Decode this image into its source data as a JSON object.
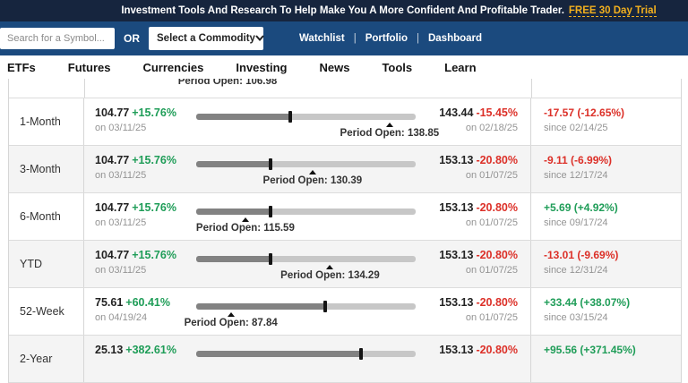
{
  "banner": {
    "text": "Investment Tools And Research To Help Make You A More Confident And Profitable Trader.",
    "link_label": "FREE 30 Day Trial"
  },
  "topbar": {
    "search_placeholder": "Search for a Symbol...",
    "or_label": "OR",
    "commodity_select_label": "Select a Commodity",
    "chevron_icon": "chevron-down",
    "separator": "|",
    "links": [
      "Watchlist",
      "Portfolio",
      "Dashboard"
    ]
  },
  "nav": {
    "items": [
      "ETFs",
      "Futures",
      "Currencies",
      "Investing",
      "News",
      "Tools",
      "Learn"
    ]
  },
  "performance": {
    "partial_row_open_label": "Period Open: 106.98",
    "rows": [
      {
        "period": "1-Month",
        "low": {
          "value": "104.77",
          "pct": "+15.76%",
          "dir": "up",
          "date": "on 03/11/25"
        },
        "high": {
          "value": "143.44",
          "pct": "-15.45%",
          "dir": "down",
          "date": "on 02/18/25"
        },
        "slider": {
          "marker_pct": 42.7,
          "open_pct": 88.1,
          "open_label": "Period Open: 138.85"
        },
        "change": {
          "text": "-17.57 (-12.65%)",
          "dir": "down",
          "date": "since 02/14/25"
        }
      },
      {
        "period": "3-Month",
        "low": {
          "value": "104.77",
          "pct": "+15.76%",
          "dir": "up",
          "date": "on 03/11/25"
        },
        "high": {
          "value": "153.13",
          "pct": "-20.80%",
          "dir": "down",
          "date": "on 01/07/25"
        },
        "slider": {
          "marker_pct": 34.0,
          "open_pct": 53.0,
          "open_label": "Period Open: 130.39"
        },
        "change": {
          "text": "-9.11 (-6.99%)",
          "dir": "down",
          "date": "since 12/17/24"
        }
      },
      {
        "period": "6-Month",
        "low": {
          "value": "104.77",
          "pct": "+15.76%",
          "dir": "up",
          "date": "on 03/11/25"
        },
        "high": {
          "value": "153.13",
          "pct": "-20.80%",
          "dir": "down",
          "date": "on 01/07/25"
        },
        "slider": {
          "marker_pct": 34.0,
          "open_pct": 22.4,
          "open_label": "Period Open: 115.59"
        },
        "change": {
          "text": "+5.69 (+4.92%)",
          "dir": "up",
          "date": "since 09/17/24"
        }
      },
      {
        "period": "YTD",
        "low": {
          "value": "104.77",
          "pct": "+15.76%",
          "dir": "up",
          "date": "on 03/11/25"
        },
        "high": {
          "value": "153.13",
          "pct": "-20.80%",
          "dir": "down",
          "date": "on 01/07/25"
        },
        "slider": {
          "marker_pct": 34.0,
          "open_pct": 61.0,
          "open_label": "Period Open: 134.29"
        },
        "change": {
          "text": "-13.01 (-9.69%)",
          "dir": "down",
          "date": "since 12/31/24"
        }
      },
      {
        "period": "52-Week",
        "low": {
          "value": "75.61",
          "pct": "+60.41%",
          "dir": "up",
          "date": "on 04/19/24"
        },
        "high": {
          "value": "153.13",
          "pct": "-20.80%",
          "dir": "down",
          "date": "on 01/07/25"
        },
        "slider": {
          "marker_pct": 58.8,
          "open_pct": 15.8,
          "open_label": "Period Open: 87.84"
        },
        "change": {
          "text": "+33.44 (+38.07%)",
          "dir": "up",
          "date": "since 03/15/24"
        }
      },
      {
        "period": "2-Year",
        "low": {
          "value": "25.13",
          "pct": "+382.61%",
          "dir": "up",
          "date": ""
        },
        "high": {
          "value": "153.13",
          "pct": "-20.80%",
          "dir": "down",
          "date": ""
        },
        "slider": {
          "marker_pct": 75.0,
          "open_pct": null,
          "open_label": ""
        },
        "change": {
          "text": "+95.56 (+371.45%)",
          "dir": "up",
          "date": ""
        }
      }
    ]
  },
  "colors": {
    "banner_navy": "#16253e",
    "topbar_blue": "#1b4a7e",
    "link_gold": "#f2b01e",
    "green": "#1f9d58",
    "red": "#dc3028"
  }
}
